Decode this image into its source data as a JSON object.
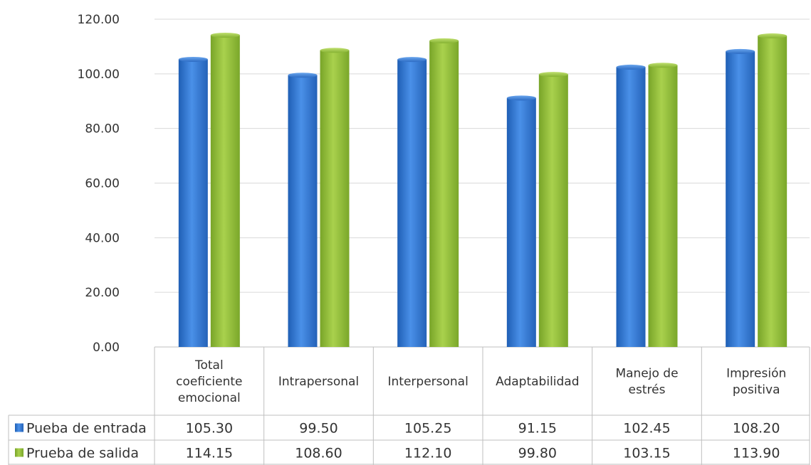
{
  "chart_data": {
    "type": "bar",
    "categories": [
      [
        "Total",
        "coeficiente",
        "emocional"
      ],
      [
        "Intrapersonal"
      ],
      [
        "Interpersonal"
      ],
      [
        "Adaptabilidad"
      ],
      [
        "Manejo de",
        "estrés"
      ],
      [
        "Impresión",
        "positiva"
      ]
    ],
    "series": [
      {
        "name": "Pueba de entrada",
        "color": "#3b7dd8",
        "values": [
          105.3,
          99.5,
          105.25,
          91.15,
          102.45,
          108.2
        ],
        "labels": [
          "105.30",
          "99.50",
          "105.25",
          "91.15",
          "102.45",
          "108.20"
        ]
      },
      {
        "name": "Prueba de salida",
        "color": "#9bc53d",
        "values": [
          114.15,
          108.6,
          112.1,
          99.8,
          103.15,
          113.9
        ],
        "labels": [
          "114.15",
          "108.60",
          "112.10",
          "99.80",
          "103.15",
          "113.90"
        ]
      }
    ],
    "yticks": [
      "0.00",
      "20.00",
      "40.00",
      "60.00",
      "80.00",
      "100.00",
      "120.00"
    ],
    "ylim": [
      0,
      120
    ],
    "grid": true,
    "legend": "data-table",
    "title": "",
    "xlabel": "",
    "ylabel": ""
  }
}
